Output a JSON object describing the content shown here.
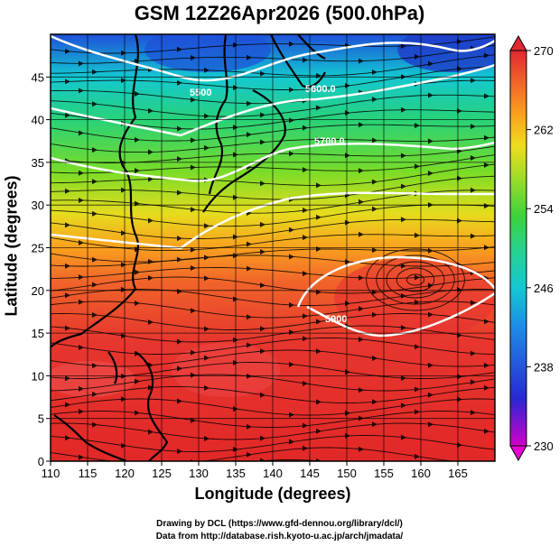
{
  "title": "GSM 12Z26Apr2026 (500.0hPa)",
  "xlabel": "Longitude (degrees)",
  "ylabel": "Latitude (degrees)",
  "credits": {
    "line1": "Drawing by DCL (https://www.gfd-dennou.org/library/dcl/)",
    "line2": "Data from http://database.rish.kyoto-u.ac.jp/arch/jmadata/"
  },
  "map": {
    "x_ticks": [
      "110",
      "115",
      "120",
      "125",
      "130",
      "135",
      "140",
      "145",
      "150",
      "155",
      "160",
      "165"
    ],
    "y_ticks": [
      "0",
      "5",
      "10",
      "15",
      "20",
      "25",
      "30",
      "35",
      "40",
      "45"
    ],
    "x_range": [
      110,
      170
    ],
    "y_range": [
      0,
      50
    ],
    "grid_step_deg": 5,
    "variable": "temperature (K)",
    "overlays": [
      "streamlines (wind)",
      "geopotential height contours (white)",
      "coastlines (black)"
    ]
  },
  "contours": [
    {
      "label": "5500",
      "lat_at_125E": 45.5
    },
    {
      "label": "5600.0",
      "lat_at_150E": 41.5
    },
    {
      "label": "5700.0",
      "lat_at_145E": 34.8
    },
    {
      "label": "5800.0",
      "lat_at_140E": 29.0
    },
    {
      "label": "5900",
      "lat_at_150E": 21.0
    }
  ],
  "colorbar": {
    "min": 230,
    "max": 270,
    "tick_labels": [
      "270",
      "262",
      "254",
      "246",
      "238",
      "230"
    ],
    "colors": [
      "#d200c8",
      "#2828d2",
      "#1e8ce6",
      "#14c8d2",
      "#28d28c",
      "#3cd23c",
      "#a0dc28",
      "#f0dc1e",
      "#faa01e",
      "#f0642a",
      "#e12832"
    ]
  }
}
